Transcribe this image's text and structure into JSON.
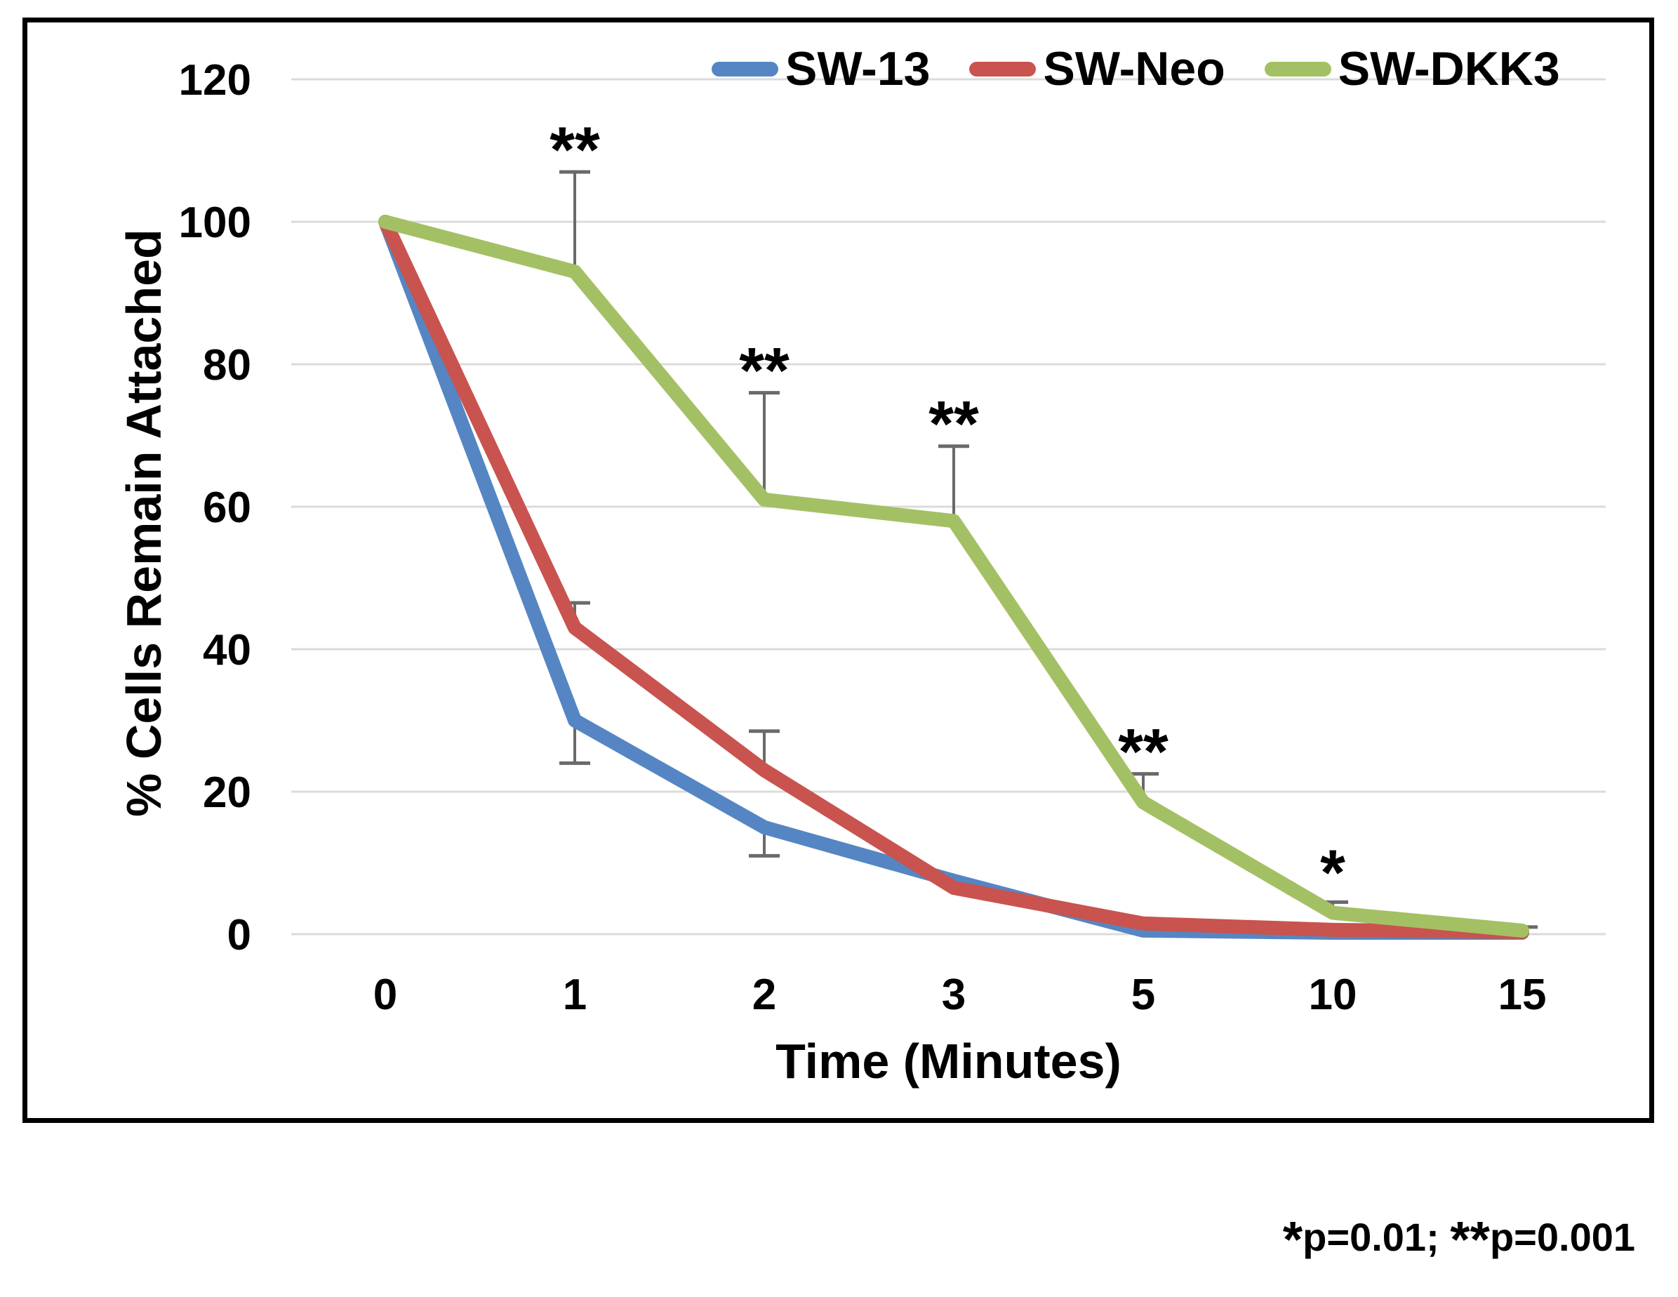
{
  "chart_data": {
    "type": "line",
    "title": "",
    "xlabel": "Time (Minutes)",
    "ylabel": "% Cells Remain Attached",
    "categories": [
      "0",
      "1",
      "2",
      "3",
      "5",
      "10",
      "15"
    ],
    "y_ticks": [
      0,
      20,
      40,
      60,
      80,
      100,
      120
    ],
    "ylim": [
      0,
      120
    ],
    "grid": "horizontal-only",
    "legend_position": "top",
    "series": [
      {
        "name": "SW-13",
        "color": "#5586C3",
        "values": [
          100,
          30,
          15,
          7.5,
          0.5,
          0.2,
          0.2
        ],
        "error_plus": [
          0,
          0,
          0,
          0,
          0,
          0,
          0
        ],
        "error_minus": [
          0,
          6,
          4,
          0,
          0,
          0,
          0
        ]
      },
      {
        "name": "SW-Neo",
        "color": "#C9534F",
        "values": [
          100,
          43,
          23,
          6.5,
          1.5,
          0.6,
          0.3
        ],
        "error_plus": [
          0,
          3.5,
          5.5,
          0,
          0,
          0,
          0
        ],
        "error_minus": [
          0,
          0,
          0,
          0,
          0,
          0,
          0
        ]
      },
      {
        "name": "SW-DKK3",
        "color": "#A3C164",
        "values": [
          100,
          93,
          61,
          58,
          18.5,
          3,
          0.5
        ],
        "error_plus": [
          0,
          14,
          15,
          10.5,
          4,
          1.5,
          0.5
        ],
        "error_minus": [
          0,
          0,
          0,
          0,
          0,
          0,
          0
        ]
      }
    ],
    "annotations": [
      {
        "category": "1",
        "text": "**",
        "y": 107
      },
      {
        "category": "2",
        "text": "**",
        "y": 76
      },
      {
        "category": "3",
        "text": "**",
        "y": 68.5
      },
      {
        "category": "5",
        "text": "**",
        "y": 22.5
      },
      {
        "category": "10",
        "text": "*",
        "y": 5.5
      }
    ],
    "footnote": {
      "star1": "*",
      "text1": "p=0.01; ",
      "star2": "**",
      "text2": "p=0.001"
    },
    "colors": {
      "gridline": "#DBDBDB",
      "error_bar": "#6A6A6A",
      "text": "#000000",
      "border": "#000000"
    }
  }
}
